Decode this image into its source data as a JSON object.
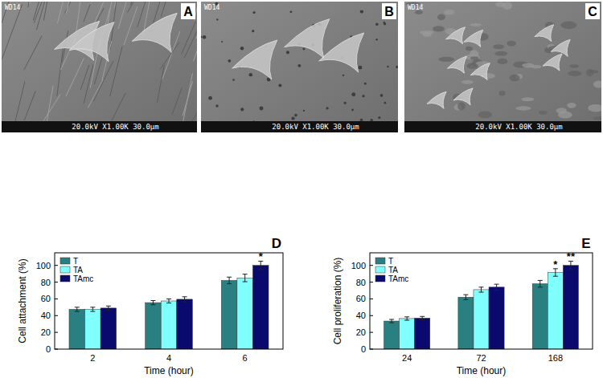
{
  "images": [
    {
      "panel_label": "A",
      "header": "WD14",
      "footer": "20.0kV X1.00K 30.0µm"
    },
    {
      "panel_label": "B",
      "header": "WD14",
      "footer": "20.0kV X1.00K 30.0µm"
    },
    {
      "panel_label": "C",
      "header": "WD14",
      "footer": "20.0kV X1.00K 30.0µm"
    }
  ],
  "chart_data": [
    {
      "type": "bar",
      "panel_label": "D",
      "x_label": "Time (hour)",
      "y_label": "Cell attachment (%)",
      "categories": [
        "2",
        "4",
        "6"
      ],
      "series": [
        {
          "name": "T",
          "color": "#2a8080",
          "values": [
            47.5,
            55.5,
            82
          ],
          "errors": [
            2.5,
            2.5,
            4
          ],
          "significance": [
            null,
            null,
            null
          ]
        },
        {
          "name": "TA",
          "color": "#80ffff",
          "values": [
            47.5,
            57.5,
            85
          ],
          "errors": [
            2.5,
            2.5,
            4.5
          ],
          "significance": [
            null,
            null,
            null
          ]
        },
        {
          "name": "TAmc",
          "color": "#0a0a6e",
          "values": [
            49,
            59.5,
            100
          ],
          "errors": [
            2.5,
            3,
            5
          ],
          "significance": [
            null,
            null,
            "*"
          ]
        }
      ],
      "ylim": [
        0,
        115
      ],
      "yticks": [
        0,
        20,
        40,
        60,
        80,
        100
      ],
      "grid": false,
      "legend": "upper left"
    },
    {
      "type": "bar",
      "panel_label": "E",
      "x_label": "Time (hour)",
      "y_label": "Cell proliferation (%)",
      "categories": [
        "24",
        "72",
        "168"
      ],
      "series": [
        {
          "name": "T",
          "color": "#2a8080",
          "values": [
            33.5,
            62,
            78
          ],
          "errors": [
            2,
            3,
            4
          ],
          "significance": [
            null,
            null,
            null
          ]
        },
        {
          "name": "TA",
          "color": "#80ffff",
          "values": [
            36.5,
            71,
            91.5
          ],
          "errors": [
            2,
            3,
            4.5
          ],
          "significance": [
            null,
            null,
            "*"
          ]
        },
        {
          "name": "TAmc",
          "color": "#0a0a6e",
          "values": [
            37,
            74,
            100
          ],
          "errors": [
            2,
            3.5,
            5
          ],
          "significance": [
            null,
            null,
            "**"
          ]
        }
      ],
      "ylim": [
        0,
        115
      ],
      "yticks": [
        0,
        20,
        40,
        60,
        80,
        100
      ],
      "grid": false,
      "legend": "upper left"
    }
  ]
}
